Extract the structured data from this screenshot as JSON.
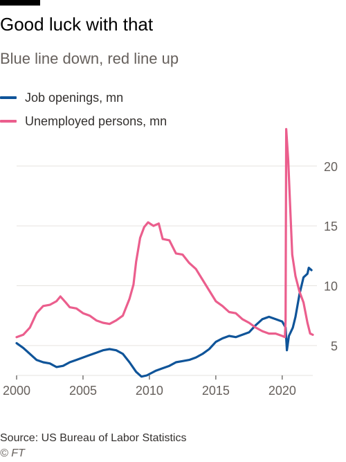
{
  "title": "Good luck with that",
  "subtitle": "Blue line down, red line up",
  "source": "Source: US Bureau of Labor Statistics",
  "copyright": "© FT",
  "colors": {
    "job_openings": "#0f5499",
    "unemployed": "#eb5e8d",
    "grid": "#e6e3df",
    "tick_text": "#66605c",
    "axis": "#33302e"
  },
  "chart_data": {
    "type": "line",
    "title": "Good luck with that",
    "subtitle": "Blue line down, red line up",
    "xlabel": "",
    "ylabel": "",
    "xlim": [
      2000,
      2022.3
    ],
    "ylim": [
      2.5,
      23
    ],
    "y_axis_side": "right",
    "x_ticks": [
      2000,
      2005,
      2010,
      2015,
      2020
    ],
    "y_ticks": [
      5,
      10,
      15,
      20
    ],
    "grid": true,
    "legend": "top-left",
    "series": [
      {
        "name": "Job openings, mn",
        "color": "#0f5499",
        "points": [
          [
            2000,
            5.2
          ],
          [
            2000.5,
            4.8
          ],
          [
            2001,
            4.3
          ],
          [
            2001.5,
            3.8
          ],
          [
            2002,
            3.6
          ],
          [
            2002.5,
            3.5
          ],
          [
            2003,
            3.2
          ],
          [
            2003.5,
            3.3
          ],
          [
            2004,
            3.6
          ],
          [
            2004.5,
            3.8
          ],
          [
            2005,
            4.0
          ],
          [
            2005.5,
            4.2
          ],
          [
            2006,
            4.4
          ],
          [
            2006.5,
            4.6
          ],
          [
            2007,
            4.7
          ],
          [
            2007.5,
            4.6
          ],
          [
            2008,
            4.3
          ],
          [
            2008.5,
            3.6
          ],
          [
            2009,
            2.8
          ],
          [
            2009.4,
            2.4
          ],
          [
            2009.8,
            2.5
          ],
          [
            2010.5,
            2.9
          ],
          [
            2011,
            3.1
          ],
          [
            2011.5,
            3.3
          ],
          [
            2012,
            3.6
          ],
          [
            2012.5,
            3.7
          ],
          [
            2013,
            3.8
          ],
          [
            2013.5,
            4.0
          ],
          [
            2014,
            4.3
          ],
          [
            2014.5,
            4.7
          ],
          [
            2015,
            5.3
          ],
          [
            2015.5,
            5.6
          ],
          [
            2016,
            5.8
          ],
          [
            2016.5,
            5.7
          ],
          [
            2017,
            5.9
          ],
          [
            2017.5,
            6.1
          ],
          [
            2018,
            6.7
          ],
          [
            2018.5,
            7.2
          ],
          [
            2019,
            7.4
          ],
          [
            2019.5,
            7.2
          ],
          [
            2020,
            7.0
          ],
          [
            2020.25,
            6.5
          ],
          [
            2020.35,
            4.6
          ],
          [
            2020.5,
            5.8
          ],
          [
            2020.8,
            6.5
          ],
          [
            2021,
            7.4
          ],
          [
            2021.3,
            9.3
          ],
          [
            2021.6,
            10.7
          ],
          [
            2021.9,
            11.0
          ],
          [
            2022,
            11.5
          ],
          [
            2022.2,
            11.3
          ]
        ]
      },
      {
        "name": "Unemployed persons, mn",
        "color": "#eb5e8d",
        "points": [
          [
            2000,
            5.7
          ],
          [
            2000.5,
            5.9
          ],
          [
            2001,
            6.5
          ],
          [
            2001.5,
            7.7
          ],
          [
            2002,
            8.3
          ],
          [
            2002.5,
            8.4
          ],
          [
            2003,
            8.7
          ],
          [
            2003.3,
            9.1
          ],
          [
            2003.7,
            8.6
          ],
          [
            2004,
            8.2
          ],
          [
            2004.5,
            8.1
          ],
          [
            2005,
            7.7
          ],
          [
            2005.5,
            7.5
          ],
          [
            2006,
            7.1
          ],
          [
            2006.5,
            6.9
          ],
          [
            2007,
            6.8
          ],
          [
            2007.5,
            7.1
          ],
          [
            2008,
            7.5
          ],
          [
            2008.5,
            8.9
          ],
          [
            2008.8,
            10.1
          ],
          [
            2009,
            12.0
          ],
          [
            2009.3,
            14.0
          ],
          [
            2009.6,
            14.9
          ],
          [
            2009.9,
            15.3
          ],
          [
            2010.3,
            15.0
          ],
          [
            2010.7,
            15.2
          ],
          [
            2011,
            13.9
          ],
          [
            2011.5,
            13.8
          ],
          [
            2012,
            12.7
          ],
          [
            2012.5,
            12.6
          ],
          [
            2013,
            11.9
          ],
          [
            2013.5,
            11.4
          ],
          [
            2014,
            10.5
          ],
          [
            2014.5,
            9.6
          ],
          [
            2015,
            8.7
          ],
          [
            2015.5,
            8.3
          ],
          [
            2016,
            7.8
          ],
          [
            2016.5,
            7.7
          ],
          [
            2017,
            7.2
          ],
          [
            2017.5,
            6.9
          ],
          [
            2018,
            6.5
          ],
          [
            2018.5,
            6.2
          ],
          [
            2019,
            6.0
          ],
          [
            2019.5,
            6.0
          ],
          [
            2020,
            5.8
          ],
          [
            2020.2,
            5.7
          ],
          [
            2020.25,
            7.1
          ],
          [
            2020.3,
            23.1
          ],
          [
            2020.45,
            20.5
          ],
          [
            2020.6,
            16.5
          ],
          [
            2020.75,
            12.6
          ],
          [
            2021,
            10.8
          ],
          [
            2021.3,
            9.5
          ],
          [
            2021.6,
            8.6
          ],
          [
            2021.9,
            6.9
          ],
          [
            2022.1,
            6.0
          ],
          [
            2022.3,
            5.9
          ]
        ]
      }
    ]
  }
}
